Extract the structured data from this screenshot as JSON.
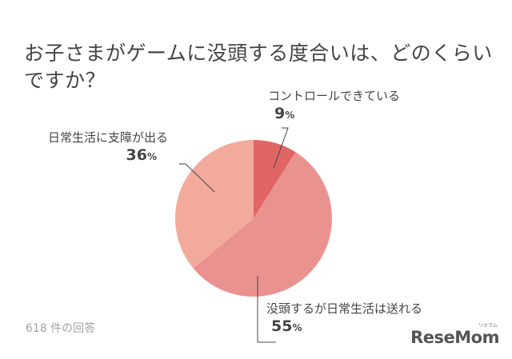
{
  "title": "お子さまがゲームに没頭する度合いは、どのくらいですか？",
  "footnote": "618 件の回答",
  "logo": {
    "text": "ReseMom",
    "sub": "リセマム"
  },
  "chart_data": {
    "type": "pie",
    "unit": "%",
    "slices": [
      {
        "label": "コントロールできている",
        "value": 9,
        "color": "#e06666"
      },
      {
        "label": "没頭するが日常生活は送れる",
        "value": 55,
        "color": "#ea9290"
      },
      {
        "label": "日常生活に支障が出る",
        "value": 36,
        "color": "#f2aa9c"
      }
    ]
  }
}
